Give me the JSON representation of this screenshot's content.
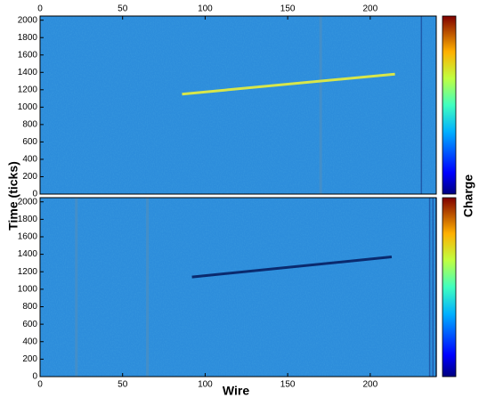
{
  "chart_data": [
    {
      "type": "line",
      "xlim": [
        0,
        240
      ],
      "ylim": [
        0,
        2048
      ],
      "xticks": [
        0,
        50,
        100,
        150,
        200
      ],
      "yticks": [
        0,
        200,
        400,
        600,
        800,
        1000,
        1200,
        1400,
        1600,
        1800,
        2000
      ],
      "x": [
        86,
        215
      ],
      "values": [
        1150,
        1380
      ],
      "color": "#d8e64a"
    },
    {
      "type": "line",
      "xlim": [
        0,
        240
      ],
      "ylim": [
        0,
        2048
      ],
      "xticks": [
        0,
        50,
        100,
        150,
        200
      ],
      "yticks": [
        0,
        200,
        400,
        600,
        800,
        1000,
        1200,
        1400,
        1600,
        1800,
        2000
      ],
      "x": [
        92,
        213
      ],
      "values": [
        1140,
        1370
      ],
      "color": "#0a2a6e"
    }
  ],
  "xlabel": "Wire",
  "ylabel": "Time (ticks)",
  "colorbar_label": "Charge"
}
